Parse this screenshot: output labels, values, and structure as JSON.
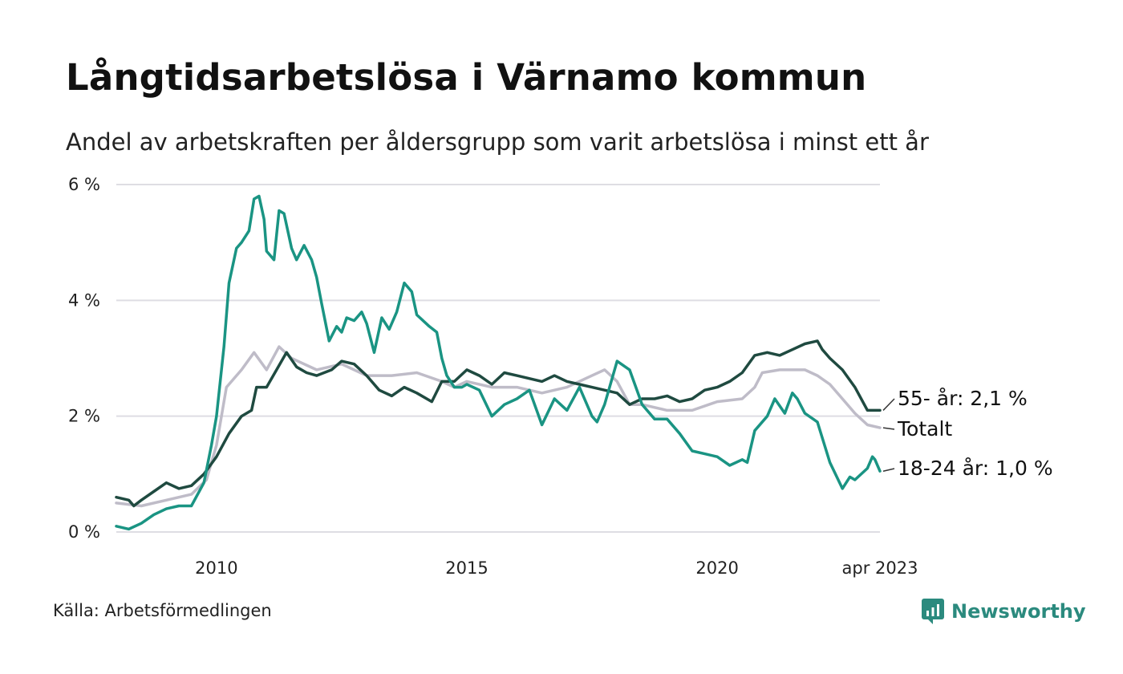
{
  "header": {
    "title": "Långtidsarbetslösa i Värnamo kommun",
    "subtitle": "Andel av arbetskraften per åldersgrupp som varit arbetslösa i minst ett år"
  },
  "footer": {
    "source": "Källa: Arbetsförmedlingen",
    "brand": "Newsworthy"
  },
  "chart_data": {
    "type": "line",
    "x_unit": "year (decimal)",
    "x_ticks": [
      {
        "value": 2010,
        "label": "2010"
      },
      {
        "value": 2015,
        "label": "2015"
      },
      {
        "value": 2020,
        "label": "2020"
      },
      {
        "value": 2023.25,
        "label": "apr 2023"
      }
    ],
    "y_ticks": [
      {
        "value": 0,
        "label": "0 %"
      },
      {
        "value": 2,
        "label": "2 %"
      },
      {
        "value": 4,
        "label": "4 %"
      },
      {
        "value": 6,
        "label": "6 %"
      }
    ],
    "xlim": [
      2008.0,
      2023.25
    ],
    "ylim": [
      0,
      6
    ],
    "grid": true,
    "legend": "end-of-line labels",
    "series": [
      {
        "label": "Totalt",
        "color": "#bfbcc8",
        "points": [
          [
            2008.0,
            0.5
          ],
          [
            2008.5,
            0.45
          ],
          [
            2009.0,
            0.55
          ],
          [
            2009.5,
            0.65
          ],
          [
            2009.8,
            0.9
          ],
          [
            2010.0,
            1.5
          ],
          [
            2010.2,
            2.5
          ],
          [
            2010.5,
            2.8
          ],
          [
            2010.75,
            3.1
          ],
          [
            2011.0,
            2.8
          ],
          [
            2011.25,
            3.2
          ],
          [
            2011.5,
            3.0
          ],
          [
            2011.75,
            2.9
          ],
          [
            2012.0,
            2.8
          ],
          [
            2012.5,
            2.9
          ],
          [
            2013.0,
            2.7
          ],
          [
            2013.5,
            2.7
          ],
          [
            2014.0,
            2.75
          ],
          [
            2014.5,
            2.6
          ],
          [
            2014.75,
            2.5
          ],
          [
            2015.0,
            2.6
          ],
          [
            2015.5,
            2.5
          ],
          [
            2016.0,
            2.5
          ],
          [
            2016.5,
            2.4
          ],
          [
            2017.0,
            2.5
          ],
          [
            2017.5,
            2.7
          ],
          [
            2017.75,
            2.8
          ],
          [
            2018.0,
            2.6
          ],
          [
            2018.25,
            2.2
          ],
          [
            2018.5,
            2.2
          ],
          [
            2019.0,
            2.1
          ],
          [
            2019.5,
            2.1
          ],
          [
            2020.0,
            2.25
          ],
          [
            2020.5,
            2.3
          ],
          [
            2020.75,
            2.5
          ],
          [
            2020.9,
            2.75
          ],
          [
            2021.25,
            2.8
          ],
          [
            2021.75,
            2.8
          ],
          [
            2022.0,
            2.7
          ],
          [
            2022.25,
            2.55
          ],
          [
            2022.5,
            2.3
          ],
          [
            2022.75,
            2.05
          ],
          [
            2023.0,
            1.85
          ],
          [
            2023.25,
            1.8
          ]
        ]
      },
      {
        "label": "55- år: 2,1 %",
        "color": "#1f4a40",
        "points": [
          [
            2008.0,
            0.6
          ],
          [
            2008.25,
            0.55
          ],
          [
            2008.35,
            0.45
          ],
          [
            2008.5,
            0.55
          ],
          [
            2008.75,
            0.7
          ],
          [
            2009.0,
            0.85
          ],
          [
            2009.25,
            0.75
          ],
          [
            2009.5,
            0.8
          ],
          [
            2009.75,
            1.0
          ],
          [
            2010.0,
            1.3
          ],
          [
            2010.25,
            1.7
          ],
          [
            2010.5,
            2.0
          ],
          [
            2010.7,
            2.1
          ],
          [
            2010.8,
            2.5
          ],
          [
            2011.0,
            2.5
          ],
          [
            2011.2,
            2.8
          ],
          [
            2011.4,
            3.1
          ],
          [
            2011.6,
            2.85
          ],
          [
            2011.8,
            2.75
          ],
          [
            2012.0,
            2.7
          ],
          [
            2012.3,
            2.8
          ],
          [
            2012.5,
            2.95
          ],
          [
            2012.75,
            2.9
          ],
          [
            2013.0,
            2.7
          ],
          [
            2013.25,
            2.45
          ],
          [
            2013.5,
            2.35
          ],
          [
            2013.75,
            2.5
          ],
          [
            2014.0,
            2.4
          ],
          [
            2014.3,
            2.25
          ],
          [
            2014.5,
            2.6
          ],
          [
            2014.75,
            2.6
          ],
          [
            2015.0,
            2.8
          ],
          [
            2015.25,
            2.7
          ],
          [
            2015.5,
            2.55
          ],
          [
            2015.75,
            2.75
          ],
          [
            2016.0,
            2.7
          ],
          [
            2016.5,
            2.6
          ],
          [
            2016.75,
            2.7
          ],
          [
            2017.0,
            2.6
          ],
          [
            2017.25,
            2.55
          ],
          [
            2017.5,
            2.5
          ],
          [
            2017.75,
            2.45
          ],
          [
            2018.0,
            2.4
          ],
          [
            2018.25,
            2.2
          ],
          [
            2018.5,
            2.3
          ],
          [
            2018.75,
            2.3
          ],
          [
            2019.0,
            2.35
          ],
          [
            2019.25,
            2.25
          ],
          [
            2019.5,
            2.3
          ],
          [
            2019.75,
            2.45
          ],
          [
            2020.0,
            2.5
          ],
          [
            2020.25,
            2.6
          ],
          [
            2020.5,
            2.75
          ],
          [
            2020.75,
            3.05
          ],
          [
            2021.0,
            3.1
          ],
          [
            2021.25,
            3.05
          ],
          [
            2021.5,
            3.15
          ],
          [
            2021.75,
            3.25
          ],
          [
            2022.0,
            3.3
          ],
          [
            2022.1,
            3.15
          ],
          [
            2022.25,
            3.0
          ],
          [
            2022.5,
            2.8
          ],
          [
            2022.75,
            2.5
          ],
          [
            2023.0,
            2.1
          ],
          [
            2023.25,
            2.1
          ]
        ]
      },
      {
        "label": "18-24 år: 1,0 %",
        "color": "#1a9483",
        "points": [
          [
            2008.0,
            0.1
          ],
          [
            2008.25,
            0.05
          ],
          [
            2008.5,
            0.15
          ],
          [
            2008.75,
            0.3
          ],
          [
            2009.0,
            0.4
          ],
          [
            2009.25,
            0.45
          ],
          [
            2009.5,
            0.45
          ],
          [
            2009.75,
            0.85
          ],
          [
            2009.9,
            1.5
          ],
          [
            2010.0,
            2.0
          ],
          [
            2010.15,
            3.2
          ],
          [
            2010.25,
            4.3
          ],
          [
            2010.4,
            4.9
          ],
          [
            2010.5,
            5.0
          ],
          [
            2010.65,
            5.2
          ],
          [
            2010.75,
            5.75
          ],
          [
            2010.85,
            5.8
          ],
          [
            2010.95,
            5.4
          ],
          [
            2011.0,
            4.85
          ],
          [
            2011.15,
            4.7
          ],
          [
            2011.25,
            5.55
          ],
          [
            2011.35,
            5.5
          ],
          [
            2011.5,
            4.9
          ],
          [
            2011.6,
            4.7
          ],
          [
            2011.75,
            4.95
          ],
          [
            2011.9,
            4.7
          ],
          [
            2012.0,
            4.4
          ],
          [
            2012.1,
            3.95
          ],
          [
            2012.25,
            3.3
          ],
          [
            2012.4,
            3.55
          ],
          [
            2012.5,
            3.45
          ],
          [
            2012.6,
            3.7
          ],
          [
            2012.75,
            3.65
          ],
          [
            2012.9,
            3.8
          ],
          [
            2013.0,
            3.6
          ],
          [
            2013.15,
            3.1
          ],
          [
            2013.3,
            3.7
          ],
          [
            2013.45,
            3.5
          ],
          [
            2013.6,
            3.8
          ],
          [
            2013.75,
            4.3
          ],
          [
            2013.9,
            4.15
          ],
          [
            2014.0,
            3.75
          ],
          [
            2014.25,
            3.55
          ],
          [
            2014.4,
            3.45
          ],
          [
            2014.5,
            3.0
          ],
          [
            2014.6,
            2.7
          ],
          [
            2014.75,
            2.5
          ],
          [
            2014.9,
            2.5
          ],
          [
            2015.0,
            2.55
          ],
          [
            2015.25,
            2.45
          ],
          [
            2015.5,
            2.0
          ],
          [
            2015.75,
            2.2
          ],
          [
            2016.0,
            2.3
          ],
          [
            2016.25,
            2.45
          ],
          [
            2016.5,
            1.85
          ],
          [
            2016.75,
            2.3
          ],
          [
            2017.0,
            2.1
          ],
          [
            2017.25,
            2.5
          ],
          [
            2017.5,
            2.0
          ],
          [
            2017.6,
            1.9
          ],
          [
            2017.75,
            2.2
          ],
          [
            2018.0,
            2.95
          ],
          [
            2018.25,
            2.8
          ],
          [
            2018.5,
            2.2
          ],
          [
            2018.75,
            1.95
          ],
          [
            2019.0,
            1.95
          ],
          [
            2019.25,
            1.7
          ],
          [
            2019.5,
            1.4
          ],
          [
            2019.75,
            1.35
          ],
          [
            2020.0,
            1.3
          ],
          [
            2020.25,
            1.15
          ],
          [
            2020.5,
            1.25
          ],
          [
            2020.6,
            1.2
          ],
          [
            2020.75,
            1.75
          ],
          [
            2021.0,
            2.0
          ],
          [
            2021.15,
            2.3
          ],
          [
            2021.35,
            2.05
          ],
          [
            2021.5,
            2.4
          ],
          [
            2021.6,
            2.3
          ],
          [
            2021.75,
            2.05
          ],
          [
            2022.0,
            1.9
          ],
          [
            2022.25,
            1.2
          ],
          [
            2022.5,
            0.75
          ],
          [
            2022.65,
            0.95
          ],
          [
            2022.75,
            0.9
          ],
          [
            2023.0,
            1.1
          ],
          [
            2023.1,
            1.3
          ],
          [
            2023.15,
            1.25
          ],
          [
            2023.25,
            1.05
          ]
        ]
      }
    ]
  }
}
